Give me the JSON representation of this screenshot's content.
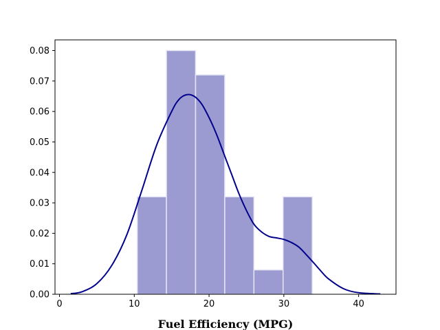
{
  "chart_data": {
    "type": "bar",
    "title": "",
    "xlabel": "Fuel Efficiency (MPG)",
    "ylabel": "",
    "xlim": [
      -0.6,
      45
    ],
    "ylim": [
      0,
      0.0835
    ],
    "x_ticks": [
      0,
      10,
      20,
      30,
      40
    ],
    "y_ticks": [
      0.0,
      0.01,
      0.02,
      0.03,
      0.04,
      0.05,
      0.06,
      0.07,
      0.08
    ],
    "grid": false,
    "legend": "none",
    "histogram": {
      "bin_edges": [
        10.4,
        14.3,
        18.2,
        22.1,
        26.0,
        29.9,
        33.8
      ],
      "density": [
        0.032,
        0.08,
        0.072,
        0.032,
        0.008,
        0.032
      ],
      "color": "#9b9bd1",
      "edge_color": "#e6e6f5"
    },
    "kde": {
      "color": "#00008b",
      "x": [
        1.5,
        3,
        5,
        7,
        9,
        11,
        13,
        15,
        16,
        17,
        18,
        19,
        20,
        21,
        22,
        23,
        24,
        25,
        26,
        27,
        28,
        29,
        30,
        31,
        32,
        33,
        34,
        35,
        36,
        38,
        40,
        42.9
      ],
      "y": [
        0.0002,
        0.0008,
        0.0035,
        0.0095,
        0.0195,
        0.034,
        0.049,
        0.06,
        0.064,
        0.0655,
        0.065,
        0.0625,
        0.058,
        0.0525,
        0.046,
        0.0395,
        0.033,
        0.0275,
        0.023,
        0.0205,
        0.019,
        0.0185,
        0.018,
        0.017,
        0.0155,
        0.013,
        0.0103,
        0.0075,
        0.005,
        0.0018,
        0.0005,
        0.0001
      ]
    }
  }
}
